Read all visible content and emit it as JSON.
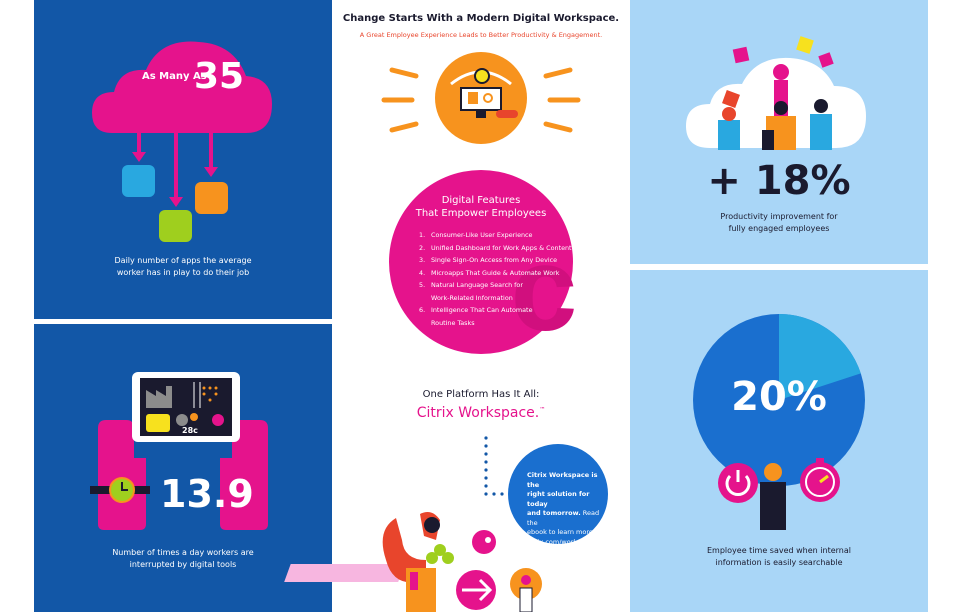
{
  "panel_apps": {
    "prefix": "As Many As",
    "number": "35",
    "caption_line1": "Daily number of apps the average",
    "caption_line2": "worker has in play to do their job"
  },
  "panel_interrupt": {
    "temperature": "28c",
    "number": "13.9",
    "caption_line1": "Number of times a day workers are",
    "caption_line2": "interrupted by digital tools"
  },
  "center": {
    "title": "Change Starts With a Modern Digital Workspace.",
    "subtitle": "A Great Employee Experience Leads to Better Productivity & Engagement.",
    "features_title_line1": "Digital Features",
    "features_title_line2": "That Empower Employees",
    "features": [
      {
        "num": "1.",
        "text": "Consumer-Like User Experience"
      },
      {
        "num": "2.",
        "text": "Unified Dashboard for Work Apps & Content"
      },
      {
        "num": "3.",
        "text": "Single Sign-On Access from Any Device"
      },
      {
        "num": "4.",
        "text": "Microapps That Guide & Automate Work"
      },
      {
        "num": "5.",
        "text": "Natural Language Search for",
        "text2": "Work-Related Information"
      },
      {
        "num": "6.",
        "text": "Intelligence That Can Automate",
        "text2": "Routine Tasks"
      }
    ],
    "platform_line": "One Platform Has It All:",
    "product_name": "Citrix Workspace.",
    "trademark": "™",
    "note_bold1": "Citrix Workspace is the",
    "note_bold2": "right solution for today",
    "note_bold3": "and tomorrow.",
    "note_rest1": " Read the",
    "note_rest2": "ebook to learn more:",
    "note_link": "citrix.com/workspace."
  },
  "panel_productivity": {
    "number": "+ 18%",
    "caption_line1": "Productivity improvement for",
    "caption_line2": "fully engaged employees"
  },
  "panel_time": {
    "number": "20%",
    "pie_fraction": 0.2,
    "caption_line1": "Employee time saved when internal",
    "caption_line2": "information is easily searchable"
  },
  "colors": {
    "blue_panel": "#1257a7",
    "light_panel": "#a9d6f7",
    "magenta": "#e5138c",
    "orange": "#f7931e",
    "lime": "#9fcf1e",
    "sky": "#29a8e0",
    "red": "#e8452c"
  }
}
